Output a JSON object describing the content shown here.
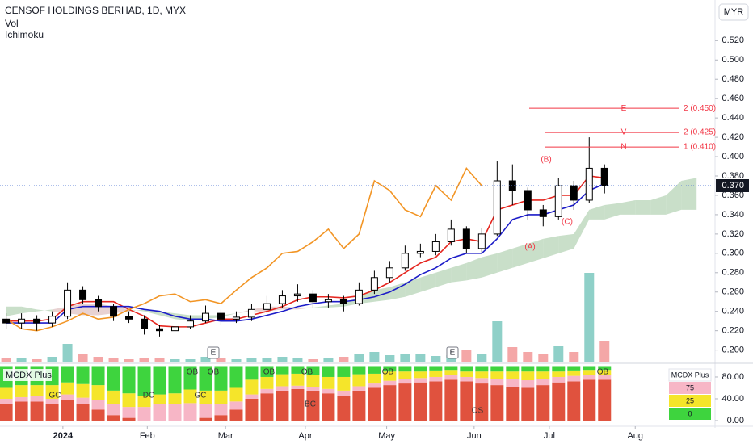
{
  "chart_data": [
    {
      "type": "candlestick",
      "title": "CENSOF HOLDINGS BERHAD, 1D, MYX",
      "indicators": [
        "Vol",
        "Ichimoku"
      ],
      "currency": "MYR",
      "xlim": [
        -0.4,
        46.2
      ],
      "ylim": [
        0.188,
        0.562
      ],
      "xticks": [
        {
          "value": 3.7,
          "label": "2024"
        },
        {
          "value": 9.2,
          "label": "Feb"
        },
        {
          "value": 14.3,
          "label": "Mar"
        },
        {
          "value": 19.5,
          "label": "Apr"
        },
        {
          "value": 24.8,
          "label": "May"
        },
        {
          "value": 30.5,
          "label": "Jun"
        },
        {
          "value": 35.4,
          "label": "Jul"
        },
        {
          "value": 41,
          "label": "Aug"
        }
      ],
      "yticks": [
        {
          "value": 0.2,
          "label": "0.200"
        },
        {
          "value": 0.22,
          "label": "0.220"
        },
        {
          "value": 0.24,
          "label": "0.240"
        },
        {
          "value": 0.26,
          "label": "0.260"
        },
        {
          "value": 0.28,
          "label": "0.280"
        },
        {
          "value": 0.3,
          "label": "0.300"
        },
        {
          "value": 0.32,
          "label": "0.320"
        },
        {
          "value": 0.34,
          "label": "0.340"
        },
        {
          "value": 0.36,
          "label": "0.360"
        },
        {
          "value": 0.38,
          "label": "0.380"
        },
        {
          "value": 0.4,
          "label": "0.400"
        },
        {
          "value": 0.42,
          "label": "0.420"
        },
        {
          "value": 0.44,
          "label": "0.440"
        },
        {
          "value": 0.46,
          "label": "0.460"
        },
        {
          "value": 0.48,
          "label": "0.480"
        },
        {
          "value": 0.5,
          "label": "0.500"
        },
        {
          "value": 0.52,
          "label": "0.520"
        }
      ],
      "grid": false,
      "open": [
        0.232,
        0.228,
        0.232,
        0.228,
        0.235,
        0.262,
        0.252,
        0.245,
        0.235,
        0.232,
        0.222,
        0.22,
        0.224,
        0.23,
        0.238,
        0.232,
        0.234,
        0.242,
        0.248,
        0.256,
        0.258,
        0.25,
        0.252,
        0.248,
        0.262,
        0.275,
        0.285,
        0.3,
        0.302,
        0.312,
        0.325,
        0.305,
        0.32,
        0.375,
        0.365,
        0.345,
        0.338,
        0.37,
        0.355,
        0.388
      ],
      "high": [
        0.238,
        0.238,
        0.236,
        0.24,
        0.27,
        0.266,
        0.256,
        0.248,
        0.24,
        0.236,
        0.226,
        0.228,
        0.236,
        0.246,
        0.242,
        0.24,
        0.248,
        0.256,
        0.262,
        0.268,
        0.262,
        0.258,
        0.256,
        0.27,
        0.282,
        0.292,
        0.308,
        0.31,
        0.32,
        0.335,
        0.328,
        0.326,
        0.395,
        0.392,
        0.368,
        0.35,
        0.378,
        0.375,
        0.42,
        0.392
      ],
      "low": [
        0.222,
        0.222,
        0.22,
        0.224,
        0.232,
        0.248,
        0.24,
        0.23,
        0.228,
        0.216,
        0.214,
        0.216,
        0.222,
        0.228,
        0.226,
        0.228,
        0.23,
        0.238,
        0.244,
        0.25,
        0.244,
        0.244,
        0.24,
        0.246,
        0.258,
        0.27,
        0.282,
        0.296,
        0.298,
        0.308,
        0.3,
        0.3,
        0.318,
        0.35,
        0.335,
        0.328,
        0.335,
        0.345,
        0.352,
        0.362
      ],
      "close": [
        0.228,
        0.232,
        0.228,
        0.235,
        0.262,
        0.252,
        0.245,
        0.235,
        0.232,
        0.222,
        0.22,
        0.224,
        0.23,
        0.238,
        0.232,
        0.234,
        0.242,
        0.248,
        0.256,
        0.258,
        0.25,
        0.252,
        0.248,
        0.262,
        0.275,
        0.285,
        0.3,
        0.302,
        0.312,
        0.325,
        0.305,
        0.32,
        0.375,
        0.365,
        0.345,
        0.338,
        0.37,
        0.355,
        0.388,
        0.37
      ],
      "volume": [
        5,
        4,
        3,
        6,
        22,
        10,
        6,
        4,
        3,
        5,
        4,
        3,
        3,
        6,
        4,
        3,
        5,
        4,
        6,
        5,
        3,
        4,
        6,
        10,
        12,
        8,
        9,
        10,
        7,
        8,
        14,
        10,
        50,
        18,
        12,
        10,
        20,
        12,
        110,
        25
      ],
      "volume_colors": [
        "#8fd0c8",
        "#f4a7a7"
      ],
      "lines": [
        {
          "color": "#e5261f",
          "values": [
            0.23,
            0.23,
            0.23,
            0.232,
            0.245,
            0.25,
            0.25,
            0.25,
            0.242,
            0.235,
            0.225,
            0.224,
            0.224,
            0.228,
            0.232,
            0.232,
            0.236,
            0.24,
            0.245,
            0.252,
            0.255,
            0.255,
            0.254,
            0.256,
            0.262,
            0.27,
            0.28,
            0.29,
            0.296,
            0.312,
            0.315,
            0.312,
            0.345,
            0.35,
            0.355,
            0.355,
            0.36,
            0.36,
            0.38,
            0.378
          ]
        },
        {
          "color": "#1c1cc8",
          "values": [
            0.228,
            0.228,
            0.228,
            0.228,
            0.242,
            0.245,
            0.245,
            0.245,
            0.245,
            0.242,
            0.24,
            0.235,
            0.232,
            0.232,
            0.23,
            0.23,
            0.232,
            0.236,
            0.24,
            0.245,
            0.248,
            0.25,
            0.25,
            0.252,
            0.255,
            0.26,
            0.268,
            0.278,
            0.285,
            0.295,
            0.3,
            0.3,
            0.315,
            0.335,
            0.34,
            0.34,
            0.345,
            0.35,
            0.365,
            0.372
          ]
        },
        {
          "color": "#f29525",
          "values": [
            0.232,
            0.222,
            0.22,
            0.224,
            0.23,
            0.238,
            0.232,
            0.234,
            0.242,
            0.248,
            0.256,
            0.258,
            0.25,
            0.252,
            0.248,
            0.262,
            0.275,
            0.285,
            0.3,
            0.302,
            0.312,
            0.325,
            0.305,
            0.32,
            0.375,
            0.365,
            0.345,
            0.338,
            0.37,
            0.355,
            0.388,
            0.37,
            null,
            null,
            null,
            null,
            null,
            null,
            null,
            null
          ]
        }
      ],
      "span_a": [
        0.245,
        0.245,
        0.242,
        0.24,
        0.238,
        0.236,
        0.236,
        0.238,
        0.24,
        0.242,
        0.24,
        0.238,
        0.236,
        0.236,
        0.236,
        0.238,
        0.24,
        0.24,
        0.242,
        0.242,
        0.244,
        0.246,
        0.248,
        0.255,
        0.262,
        0.265,
        0.27,
        0.275,
        0.28,
        0.285,
        0.29,
        0.296,
        0.3,
        0.305,
        0.31,
        0.315,
        0.318,
        0.32,
        0.345,
        0.35,
        0.352,
        0.355,
        0.355,
        0.36,
        0.375,
        0.378
      ],
      "span_b": [
        0.235,
        0.238,
        0.24,
        0.242,
        0.245,
        0.248,
        0.248,
        0.245,
        0.242,
        0.24,
        0.236,
        0.232,
        0.23,
        0.232,
        0.234,
        0.238,
        0.242,
        0.245,
        0.245,
        0.244,
        0.244,
        0.244,
        0.245,
        0.248,
        0.25,
        0.252,
        0.255,
        0.26,
        0.265,
        0.27,
        0.272,
        0.275,
        0.28,
        0.285,
        0.29,
        0.295,
        0.3,
        0.305,
        0.335,
        0.335,
        0.34,
        0.34,
        0.34,
        0.34,
        0.345,
        0.345
      ],
      "cloud_colors": [
        "#9cc59c",
        "#d6adad"
      ],
      "fib": [
        {
          "label": "E",
          "level_label": "2 (0.450)",
          "value": 0.45
        },
        {
          "label": "V",
          "level_label": "2 (0.425)",
          "value": 0.425
        },
        {
          "label": "N",
          "level_label": "1 (0.410)",
          "value": 0.41
        }
      ],
      "fib_color": "#f23645",
      "annotations": [
        "(A)",
        "(B)",
        "(C)"
      ],
      "earnings": [
        "E",
        "E"
      ],
      "last_price": {
        "value": 0.37,
        "label": "0.370"
      }
    },
    {
      "type": "bar",
      "title": "MCDX Plus",
      "stacked": true,
      "ylim": [
        -1.5,
        100.7
      ],
      "yticks": [
        {
          "value": 0,
          "label": "0.00"
        },
        {
          "value": 40,
          "label": "40.00"
        },
        {
          "value": 80,
          "label": "80.00"
        }
      ],
      "series": [
        {
          "color": "#e0523e",
          "values": [
            30,
            35,
            35,
            30,
            38,
            30,
            20,
            10,
            5,
            0,
            0,
            0,
            0,
            5,
            10,
            20,
            40,
            50,
            55,
            58,
            55,
            50,
            45,
            55,
            60,
            65,
            68,
            70,
            72,
            75,
            72,
            68,
            65,
            62,
            60,
            65,
            70,
            72,
            75,
            75
          ]
        },
        {
          "color": "#f7b6c6",
          "values": [
            10,
            8,
            10,
            10,
            10,
            12,
            18,
            20,
            20,
            25,
            30,
            30,
            32,
            25,
            20,
            15,
            8,
            8,
            8,
            6,
            6,
            8,
            10,
            8,
            8,
            8,
            8,
            8,
            8,
            8,
            8,
            10,
            12,
            14,
            14,
            12,
            10,
            10,
            8,
            8
          ]
        },
        {
          "color": "#f5e52a",
          "values": [
            20,
            22,
            20,
            25,
            22,
            25,
            27,
            25,
            25,
            20,
            18,
            20,
            25,
            25,
            25,
            25,
            27,
            22,
            22,
            22,
            22,
            22,
            25,
            22,
            18,
            17,
            14,
            12,
            12,
            10,
            10,
            12,
            13,
            14,
            16,
            13,
            10,
            10,
            10,
            10
          ]
        },
        {
          "color": "#3ed43e",
          "values": [
            40,
            35,
            35,
            35,
            30,
            33,
            35,
            45,
            50,
            55,
            52,
            50,
            43,
            45,
            45,
            40,
            25,
            20,
            15,
            14,
            17,
            20,
            20,
            15,
            14,
            10,
            10,
            10,
            8,
            7,
            10,
            10,
            10,
            10,
            10,
            10,
            10,
            8,
            7,
            7
          ]
        }
      ],
      "signals": [
        "OB",
        "OB",
        "OB",
        "OB",
        "OB",
        "OB",
        "GC",
        "DC",
        "GC",
        "BC",
        "OS"
      ],
      "levels": [
        75,
        25,
        0
      ],
      "level_colors": [
        "#f7b6c6",
        "#f5e52a",
        "#3ed43e"
      ]
    }
  ]
}
